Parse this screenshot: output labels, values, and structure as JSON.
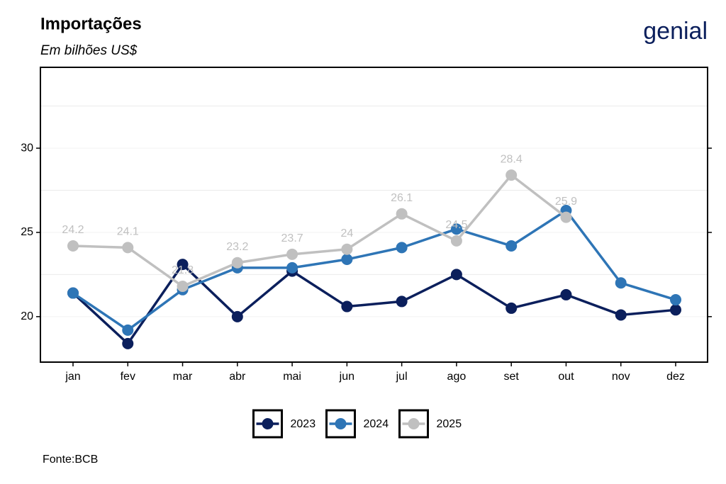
{
  "chart_data": {
    "type": "line",
    "title": "Importações",
    "subtitle": "Em bilhões US$",
    "caption": "Fonte:BCB",
    "logo": "genial",
    "categories": [
      "jan",
      "fev",
      "mar",
      "abr",
      "mai",
      "jun",
      "jul",
      "ago",
      "set",
      "out",
      "nov",
      "dez"
    ],
    "series": [
      {
        "name": "2023",
        "color": "#0b1f5c",
        "values": [
          21.4,
          18.4,
          23.1,
          20.0,
          22.7,
          20.6,
          20.9,
          22.5,
          20.5,
          21.3,
          20.1,
          20.4
        ]
      },
      {
        "name": "2024",
        "color": "#2e75b6",
        "values": [
          21.4,
          19.2,
          21.6,
          22.9,
          22.9,
          23.4,
          24.1,
          25.2,
          24.2,
          26.3,
          22.0,
          21.0
        ]
      },
      {
        "name": "2025",
        "color": "#c0c0c0",
        "values": [
          24.2,
          24.1,
          21.8,
          23.2,
          23.7,
          24,
          26.1,
          24.5,
          28.4,
          25.9,
          null,
          null
        ],
        "show_labels": true
      }
    ],
    "ylim": [
      17.3,
      34.8
    ],
    "yticks": [
      20,
      25,
      30
    ],
    "minor_grid": [
      22.5,
      27.5,
      32.5
    ],
    "grid": true,
    "legend": "bottom"
  }
}
